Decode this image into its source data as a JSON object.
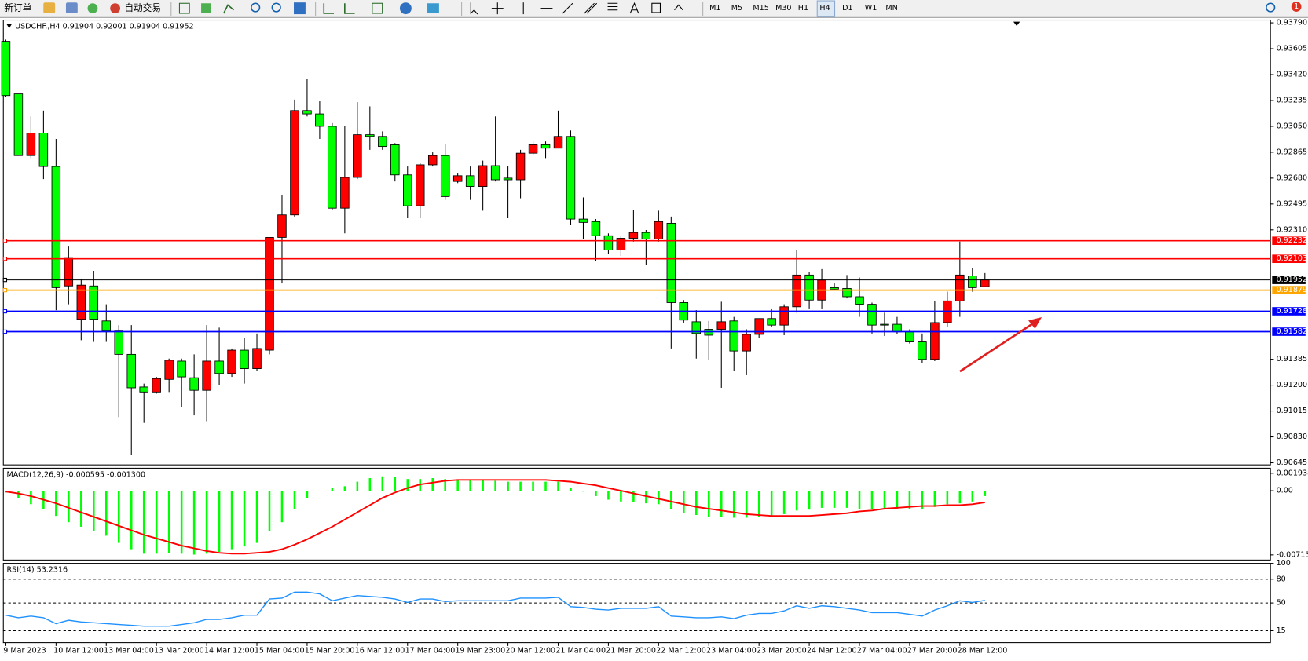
{
  "toolbar": {
    "new_order": "新订单",
    "auto_trading": "自动交易",
    "timeframes": [
      "M1",
      "M5",
      "M15",
      "M30",
      "H1",
      "H4",
      "D1",
      "W1",
      "MN"
    ],
    "notifications": "1"
  },
  "chart_data": [
    {
      "type": "candlestick",
      "title": "USDCHF.,H4 0.91904 0.92001 0.91904 0.91952",
      "categories": [
        "9 Mar 2023",
        null,
        null,
        null,
        "10 Mar 12:00",
        null,
        null,
        null,
        "13 Mar 04:00",
        null,
        null,
        null,
        "13 Mar 20:00",
        null,
        null,
        null,
        "14 Mar 12:00",
        null,
        null,
        null,
        "15 Mar 04:00",
        null,
        null,
        null,
        "15 Mar 20:00",
        null,
        null,
        null,
        "16 Mar 12:00",
        null,
        null,
        null,
        "17 Mar 04:00",
        null,
        null,
        null,
        "19 Mar 23:00",
        null,
        null,
        null,
        "20 Mar 12:00",
        null,
        null,
        null,
        "21 Mar 04:00",
        null,
        null,
        null,
        "21 Mar 20:00",
        null,
        null,
        null,
        "22 Mar 12:00",
        null,
        null,
        null,
        "23 Mar 04:00",
        null,
        null,
        null,
        "23 Mar 20:00",
        null,
        null,
        null,
        "24 Mar 12:00",
        null,
        null,
        null,
        "27 Mar 04:00",
        null,
        null,
        null,
        "27 Mar 20:00",
        null,
        null,
        null,
        "28 Mar 12:00",
        null,
        null
      ],
      "open": [
        0.93658,
        0.93282,
        0.92841,
        0.93002,
        0.92763,
        0.91909,
        0.91671,
        0.91909,
        0.91659,
        0.91587,
        0.9142,
        0.91187,
        0.91151,
        0.91241,
        0.91372,
        0.91253,
        0.91163,
        0.91372,
        0.91283,
        0.9145,
        0.91318,
        0.9145,
        0.92256,
        0.92417,
        0.93163,
        0.93139,
        0.9305,
        0.92465,
        0.92685,
        0.9299,
        0.92978,
        0.92918,
        0.92703,
        0.92482,
        0.92775,
        0.92841,
        0.92656,
        0.92697,
        0.9262,
        0.92769,
        0.9268,
        0.92668,
        0.92858,
        0.92918,
        0.92894,
        0.92978,
        0.92387,
        0.92369,
        0.92268,
        0.92166,
        0.9225,
        0.92291,
        0.92244,
        0.92357,
        0.9179,
        0.91653,
        0.91599,
        0.91599,
        0.91659,
        0.91444,
        0.91563,
        0.91676,
        0.91629,
        0.9176,
        0.91987,
        0.91808,
        0.91897,
        0.91891,
        0.91832,
        0.91778,
        0.91635,
        0.91635,
        0.91581,
        0.91509,
        0.91384,
        0.91647,
        0.91802,
        0.91981,
        0.91904
      ],
      "high": [
        0.9367,
        0.93282,
        0.93121,
        0.93163,
        0.9296,
        0.92196,
        0.91957,
        0.92017,
        0.91778,
        0.91629,
        0.91629,
        0.91211,
        0.91259,
        0.9139,
        0.9139,
        0.9142,
        0.91629,
        0.91611,
        0.91462,
        0.91539,
        0.91569,
        0.92256,
        0.9256,
        0.93241,
        0.9339,
        0.93229,
        0.93073,
        0.9305,
        0.93223,
        0.93193,
        0.93014,
        0.9293,
        0.92763,
        0.92787,
        0.92864,
        0.92924,
        0.92715,
        0.92763,
        0.92805,
        0.93121,
        0.92763,
        0.92882,
        0.92942,
        0.92942,
        0.93163,
        0.9302,
        0.92542,
        0.92387,
        0.92285,
        0.92268,
        0.92453,
        0.92309,
        0.92447,
        0.92405,
        0.91808,
        0.91736,
        0.91659,
        0.91796,
        0.91688,
        0.91599,
        0.91676,
        0.91748,
        0.91778,
        0.92166,
        0.92011,
        0.92029,
        0.91927,
        0.91987,
        0.91969,
        0.9179,
        0.91718,
        0.91688,
        0.91599,
        0.91569,
        0.91802,
        0.91868,
        0.92226,
        0.92035,
        0.92001
      ],
      "low": [
        0.93258,
        0.92841,
        0.92823,
        0.92673,
        0.91736,
        0.91778,
        0.91521,
        0.91509,
        0.91509,
        0.90972,
        0.90704,
        0.9093,
        0.91139,
        0.91151,
        0.91044,
        0.90984,
        0.90942,
        0.91199,
        0.91259,
        0.91211,
        0.913,
        0.9142,
        0.91927,
        0.92405,
        0.93121,
        0.9296,
        0.92453,
        0.92285,
        0.92673,
        0.92882,
        0.92882,
        0.92656,
        0.92393,
        0.92393,
        0.92763,
        0.92524,
        0.92644,
        0.92524,
        0.92447,
        0.92656,
        0.92393,
        0.92536,
        0.92847,
        0.92823,
        0.92894,
        0.92345,
        0.92244,
        0.92088,
        0.92136,
        0.92124,
        0.92226,
        0.92059,
        0.92226,
        0.91462,
        0.91647,
        0.9139,
        0.91378,
        0.91181,
        0.913,
        0.91271,
        0.91539,
        0.91617,
        0.91557,
        0.91718,
        0.91748,
        0.91748,
        0.9188,
        0.9182,
        0.91688,
        0.91569,
        0.91551,
        0.91563,
        0.91497,
        0.9136,
        0.91372,
        0.91617,
        0.91688,
        0.91868,
        0.91904
      ],
      "close": [
        0.9327,
        0.92841,
        0.93002,
        0.92763,
        0.91897,
        0.92106,
        0.91915,
        0.91671,
        0.91587,
        0.9142,
        0.91181,
        0.91151,
        0.91247,
        0.91378,
        0.91259,
        0.91163,
        0.91372,
        0.91283,
        0.9145,
        0.91318,
        0.91462,
        0.92256,
        0.92417,
        0.93163,
        0.93139,
        0.9305,
        0.92465,
        0.92685,
        0.9299,
        0.92978,
        0.92906,
        0.92703,
        0.92482,
        0.92775,
        0.92841,
        0.92548,
        0.92697,
        0.9262,
        0.92769,
        0.92668,
        0.92668,
        0.92858,
        0.92918,
        0.92894,
        0.92978,
        0.92387,
        0.92363,
        0.92268,
        0.92166,
        0.9225,
        0.92291,
        0.92244,
        0.92369,
        0.9179,
        0.91665,
        0.91569,
        0.91557,
        0.91653,
        0.91444,
        0.91563,
        0.91676,
        0.91629,
        0.9176,
        0.91987,
        0.91808,
        0.91951,
        0.91886,
        0.91832,
        0.91778,
        0.91629,
        0.91629,
        0.91581,
        0.91509,
        0.91384,
        0.91647,
        0.91802,
        0.91987,
        0.91897,
        0.91952
      ],
      "up_color": "#ff0000",
      "down_color": "#00ff00",
      "ylim": [
        0.9063,
        0.9381
      ],
      "yticks": [
        {
          "value": 0.9379,
          "label": "0.93790"
        },
        0.93605,
        {
          "value": 0.9342,
          "label": "0.93420"
        },
        0.93235,
        {
          "value": 0.9305,
          "label": "0.93050"
        },
        0.92865,
        {
          "value": 0.9268,
          "label": "0.92680"
        },
        0.92495,
        {
          "value": 0.9231,
          "label": "0.92310"
        },
        0.91385,
        {
          "value": 0.912,
          "label": "0.91200"
        },
        0.91015,
        {
          "value": 0.9083,
          "label": "0.90830"
        },
        0.90645
      ],
      "hlines": [
        {
          "value": 0.92232,
          "color": "#ff0000"
        },
        {
          "value": 0.92103,
          "color": "#ff0000"
        },
        {
          "value": 0.91952,
          "color": "#000000"
        },
        {
          "value": 0.91879,
          "color": "#ffa500"
        },
        {
          "value": 0.91728,
          "color": "#0000ff"
        },
        {
          "value": 0.91582,
          "color": "#0000ff"
        }
      ]
    },
    {
      "type": "macd",
      "title": "MACD(12,26,9) -0.000595 -0.001300",
      "histogram": {
        "color": "#00ff00",
        "values": [
          -0.0002,
          -0.0008,
          -0.0015,
          -0.002,
          -0.0028,
          -0.0035,
          -0.004,
          -0.0045,
          -0.005,
          -0.0058,
          -0.0065,
          -0.007,
          -0.007,
          -0.0069,
          -0.007,
          -0.0071,
          -0.007,
          -0.0068,
          -0.0065,
          -0.0062,
          -0.0058,
          -0.0045,
          -0.0035,
          -0.002,
          -0.0008,
          0,
          0.0003,
          0.0005,
          0.001,
          0.0014,
          0.0016,
          0.0015,
          0.0013,
          0.0013,
          0.0014,
          0.0013,
          0.0012,
          0.0012,
          0.0012,
          0.0011,
          0.001,
          0.001,
          0.001,
          0.001,
          0.001,
          0.0003,
          -0.0001,
          -0.0006,
          -0.001,
          -0.0012,
          -0.0013,
          -0.0014,
          -0.0015,
          -0.002,
          -0.0025,
          -0.0027,
          -0.0029,
          -0.0029,
          -0.003,
          -0.003,
          -0.0029,
          -0.0028,
          -0.0026,
          -0.0022,
          -0.0021,
          -0.0019,
          -0.0019,
          -0.0019,
          -0.002,
          -0.0021,
          -0.002,
          -0.002,
          -0.002,
          -0.002,
          -0.0018,
          -0.0015,
          -0.0014,
          -0.0012,
          -0.000595
        ]
      },
      "signal": {
        "color": "#ff0000",
        "values": [
          -0.0001,
          -0.0003,
          -0.0006,
          -0.001,
          -0.0014,
          -0.0019,
          -0.0024,
          -0.0029,
          -0.0034,
          -0.0039,
          -0.0044,
          -0.0049,
          -0.0053,
          -0.0057,
          -0.0061,
          -0.0064,
          -0.0067,
          -0.0069,
          -0.007,
          -0.007,
          -0.0069,
          -0.0068,
          -0.0065,
          -0.006,
          -0.0054,
          -0.0047,
          -0.004,
          -0.0032,
          -0.0024,
          -0.0016,
          -0.0008,
          -0.0002,
          0.0003,
          0.0007,
          0.0009,
          0.0011,
          0.0012,
          0.0012,
          0.0012,
          0.0012,
          0.0012,
          0.0012,
          0.0012,
          0.0012,
          0.0011,
          0.001,
          0.0008,
          0.0006,
          0.0003,
          0,
          -0.0003,
          -0.0006,
          -0.0009,
          -0.0012,
          -0.0015,
          -0.0018,
          -0.002,
          -0.0022,
          -0.0024,
          -0.0026,
          -0.0027,
          -0.0028,
          -0.0028,
          -0.0028,
          -0.0028,
          -0.0027,
          -0.0026,
          -0.0025,
          -0.0023,
          -0.0022,
          -0.002,
          -0.0019,
          -0.0018,
          -0.0017,
          -0.0017,
          -0.0016,
          -0.0016,
          -0.0015,
          -0.0013
        ]
      },
      "ylim": [
        -0.0077,
        0.0025
      ],
      "yticks": [
        0.001938,
        {
          "value": 0,
          "label": "0.00"
        },
        -0.007132
      ]
    },
    {
      "type": "line",
      "title": "RSI(14) 53.2316",
      "color": "#1e90ff",
      "values": [
        34.6,
        31.4,
        33.5,
        31.4,
        23.9,
        28.2,
        26.0,
        25.0,
        23.9,
        22.8,
        21.8,
        20.7,
        20.7,
        20.7,
        22.8,
        25.0,
        29.3,
        29.3,
        31.4,
        34.6,
        34.6,
        55.0,
        56.1,
        63.6,
        63.6,
        61.4,
        52.8,
        56.1,
        59.3,
        58.2,
        57.1,
        55.0,
        50.7,
        55.0,
        55.0,
        51.8,
        52.8,
        52.8,
        52.8,
        52.8,
        52.8,
        56.1,
        56.1,
        56.1,
        57.1,
        45.3,
        44.3,
        42.1,
        41.1,
        43.2,
        43.2,
        43.2,
        45.3,
        33.5,
        32.5,
        31.4,
        31.4,
        32.5,
        30.3,
        34.6,
        36.8,
        36.8,
        40.0,
        46.4,
        43.2,
        46.4,
        45.3,
        43.2,
        41.1,
        37.8,
        37.8,
        37.8,
        35.7,
        33.5,
        41.1,
        46.4,
        52.8,
        50.7,
        53.2316
      ],
      "ylim": [
        0,
        100
      ],
      "yticks": [
        100,
        80,
        50,
        15
      ],
      "levels": [
        80,
        50,
        15
      ]
    }
  ]
}
